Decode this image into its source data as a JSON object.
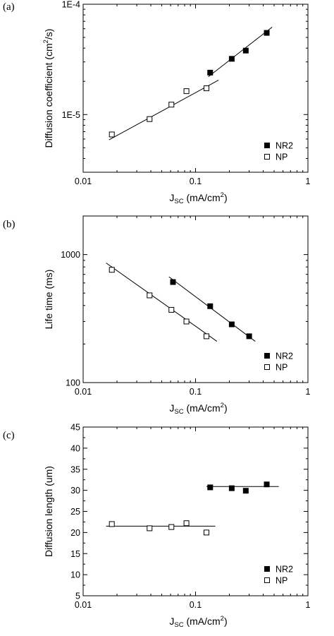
{
  "chart_data": [
    {
      "panel": "(a)",
      "type": "scatter",
      "xscale": "log",
      "yscale": "log",
      "xlim": [
        0.01,
        1
      ],
      "ylim": [
        3e-06,
        0.0001
      ],
      "xticks": [
        "0.01",
        "0.1",
        "1"
      ],
      "yticks": [
        {
          "v": 1e-05,
          "label": "1E-5"
        },
        {
          "v": 0.0001,
          "label": "1E-4"
        }
      ],
      "xlabel_main": "J",
      "xlabel_sub": "SC",
      "xlabel_rest": " (mA/cm",
      "xlabel_sup": "2",
      "xlabel_end": ")",
      "ylabel": "Diffusion coefficient (cm",
      "ylabel_sup": "2",
      "ylabel_end": "/s)",
      "legend_position": "bottom-right",
      "series": [
        {
          "name": "NR2",
          "marker": "filled-square",
          "x": [
            0.135,
            0.21,
            0.28,
            0.43
          ],
          "y": [
            2.4e-05,
            3.2e-05,
            3.8e-05,
            5.5e-05
          ],
          "fit": [
            [
              0.13,
              2.2e-05
            ],
            [
              0.48,
              6.2e-05
            ]
          ]
        },
        {
          "name": "NP",
          "marker": "open-square",
          "x": [
            0.018,
            0.039,
            0.061,
            0.083,
            0.125
          ],
          "y": [
            6.6e-06,
            9.1e-06,
            1.23e-05,
            1.63e-05,
            1.73e-05
          ],
          "fit": [
            [
              0.017,
              5.9e-06
            ],
            [
              0.16,
              2.05e-05
            ]
          ]
        }
      ]
    },
    {
      "panel": "(b)",
      "type": "scatter",
      "xscale": "log",
      "yscale": "log",
      "xlim": [
        0.01,
        1
      ],
      "ylim": [
        100,
        2000
      ],
      "xticks": [
        "0.01",
        "0.1",
        "1"
      ],
      "yticks": [
        {
          "v": 100,
          "label": "100"
        },
        {
          "v": 1000,
          "label": "1000"
        }
      ],
      "xlabel_main": "J",
      "xlabel_sub": "SC",
      "xlabel_rest": " (mA/cm",
      "xlabel_sup": "2",
      "xlabel_end": ")",
      "ylabel": "Life time (ms)",
      "ylabel_sup": "",
      "ylabel_end": "",
      "legend_position": "bottom-right",
      "series": [
        {
          "name": "NR2",
          "marker": "filled-square",
          "x": [
            0.063,
            0.135,
            0.21,
            0.3
          ],
          "y": [
            610,
            395,
            285,
            230
          ],
          "fit": [
            [
              0.058,
              670
            ],
            [
              0.34,
              210
            ]
          ]
        },
        {
          "name": "NP",
          "marker": "open-square",
          "x": [
            0.018,
            0.039,
            0.061,
            0.083,
            0.125
          ],
          "y": [
            760,
            480,
            370,
            300,
            230
          ],
          "fit": [
            [
              0.016,
              860
            ],
            [
              0.155,
              210
            ]
          ]
        }
      ]
    },
    {
      "panel": "(c)",
      "type": "scatter",
      "xscale": "log",
      "yscale": "linear",
      "xlim": [
        0.01,
        1
      ],
      "ylim": [
        5,
        45
      ],
      "xticks": [
        "0.01",
        "0.1",
        "1"
      ],
      "yticks": [
        {
          "v": 5,
          "label": "5"
        },
        {
          "v": 10,
          "label": "10"
        },
        {
          "v": 15,
          "label": "15"
        },
        {
          "v": 20,
          "label": "20"
        },
        {
          "v": 25,
          "label": "25"
        },
        {
          "v": 30,
          "label": "30"
        },
        {
          "v": 35,
          "label": "35"
        },
        {
          "v": 40,
          "label": "40"
        },
        {
          "v": 45,
          "label": "45"
        }
      ],
      "xlabel_main": "J",
      "xlabel_sub": "SC",
      "xlabel_rest": " (mA/cm",
      "xlabel_sup": "2",
      "xlabel_end": ")",
      "ylabel": "Diffusion length (um)",
      "ylabel_sup": "",
      "ylabel_end": "",
      "legend_position": "bottom-right",
      "series": [
        {
          "name": "NR2",
          "marker": "filled-square",
          "x": [
            0.135,
            0.21,
            0.28,
            0.43
          ],
          "y": [
            30.7,
            30.5,
            29.9,
            31.4
          ],
          "fit": [
            [
              0.125,
              30.9
            ],
            [
              0.55,
              30.9
            ]
          ]
        },
        {
          "name": "NP",
          "marker": "open-square",
          "x": [
            0.018,
            0.039,
            0.061,
            0.083,
            0.125
          ],
          "y": [
            22.0,
            21.0,
            21.3,
            22.2,
            20.0
          ],
          "fit": [
            [
              0.016,
              21.5
            ],
            [
              0.15,
              21.5
            ]
          ]
        }
      ]
    }
  ]
}
